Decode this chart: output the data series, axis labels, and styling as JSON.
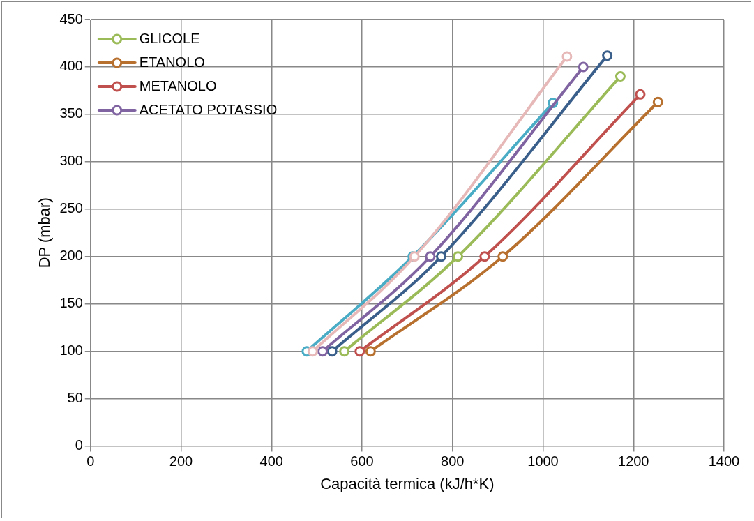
{
  "chart_data": {
    "type": "line",
    "xlabel": "Capacità termica (kJ/h*K)",
    "ylabel": "DP (mbar)",
    "xlim": [
      0,
      1400
    ],
    "xticks": [
      0,
      200,
      400,
      600,
      800,
      1000,
      1200,
      1400
    ],
    "ylim": [
      0,
      450
    ],
    "yticks": [
      0,
      50,
      100,
      150,
      200,
      250,
      300,
      350,
      400,
      450
    ],
    "grid": true,
    "legend": "top left",
    "marker": "circle",
    "line_style": "solid",
    "series": [
      {
        "name": "GLICOLE",
        "color": "#9bbb59",
        "x": [
          561,
          812,
          1171
        ],
        "values": [
          100,
          200,
          390
        ]
      },
      {
        "name": "ETANOLO",
        "color": "#b8702f",
        "x": [
          619,
          911,
          1254
        ],
        "values": [
          100,
          200,
          363
        ]
      },
      {
        "name": "METANOLO",
        "color": "#c0504d",
        "x": [
          595,
          871,
          1215
        ],
        "values": [
          100,
          200,
          371
        ]
      },
      {
        "color": "#3a5f8b",
        "x": [
          534,
          775,
          1142
        ],
        "values": [
          100,
          200,
          412
        ]
      },
      {
        "color": "#4bacc6",
        "x": [
          478,
          712,
          1022
        ],
        "values": [
          100,
          200,
          362
        ]
      },
      {
        "name": "ACETATO POTASSIO",
        "color": "#8064a2",
        "x": [
          513,
          751,
          1089
        ],
        "values": [
          100,
          200,
          400
        ]
      },
      {
        "color": "#e6b9b8",
        "x": [
          491,
          716,
          1053
        ],
        "values": [
          100,
          200,
          411
        ]
      }
    ]
  }
}
